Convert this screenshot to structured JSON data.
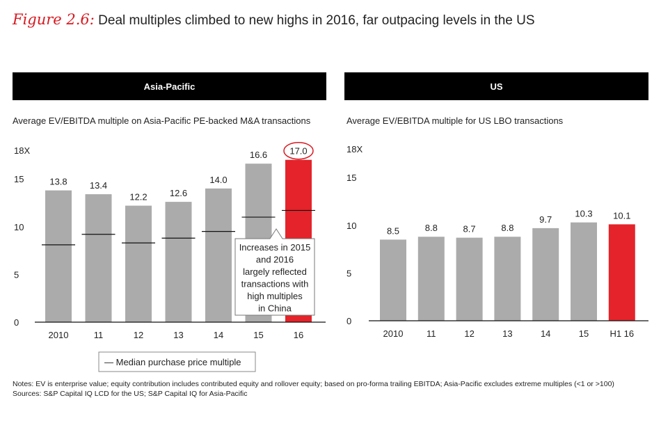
{
  "figure": {
    "label": "Figure 2.6:",
    "title": "Deal multiples climbed to new highs in 2016, far outpacing levels in the US"
  },
  "colors": {
    "bar": "#ababab",
    "highlight": "#e4232a",
    "accent": "#d71920",
    "header_bg": "#000000"
  },
  "chart_data": [
    {
      "type": "bar",
      "panel_title": "Asia-Pacific",
      "title": "Average EV/EBITDA multiple on Asia-Pacific PE-backed M&A transactions",
      "categories": [
        "2010",
        "11",
        "12",
        "13",
        "14",
        "15",
        "16"
      ],
      "values": [
        13.8,
        13.4,
        12.2,
        12.6,
        14.0,
        16.6,
        17.0
      ],
      "value_labels": [
        "13.8",
        "13.4",
        "12.2",
        "12.6",
        "14.0",
        "16.6",
        "17.0"
      ],
      "highlight_index": 6,
      "circled_index": 6,
      "median_series": {
        "name": "Median purchase price multiple",
        "values": [
          8.1,
          9.2,
          8.3,
          8.8,
          9.5,
          11.0,
          11.7
        ]
      },
      "yticks": [
        0,
        5,
        10,
        15,
        18
      ],
      "ytick_labels": [
        "0",
        "5",
        "10",
        "15",
        "18X"
      ],
      "ylim": [
        0,
        18
      ],
      "annotation": [
        "Increases in 2015",
        "and 2016",
        "largely reflected",
        "transactions with",
        "high multiples",
        "in China"
      ],
      "legend": "— Median purchase price multiple"
    },
    {
      "type": "bar",
      "panel_title": "US",
      "title": "Average EV/EBITDA multiple for US LBO transactions",
      "categories": [
        "2010",
        "11",
        "12",
        "13",
        "14",
        "15",
        "H1 16"
      ],
      "values": [
        8.5,
        8.8,
        8.7,
        8.8,
        9.7,
        10.3,
        10.1
      ],
      "value_labels": [
        "8.5",
        "8.8",
        "8.7",
        "8.8",
        "9.7",
        "10.3",
        "10.1"
      ],
      "highlight_index": 6,
      "yticks": [
        0,
        5,
        10,
        15,
        18
      ],
      "ytick_labels": [
        "0",
        "5",
        "10",
        "15",
        "18X"
      ],
      "ylim": [
        0,
        18
      ]
    }
  ],
  "notes": {
    "line1": "Notes: EV is enterprise value; equity contribution includes contributed equity and rollover equity; based on pro-forma trailing EBITDA; Asia-Pacific excludes extreme multiples (<1 or >100)",
    "line2": "Sources: S&P Capital IQ LCD for the US; S&P Capital IQ for Asia-Pacific"
  }
}
